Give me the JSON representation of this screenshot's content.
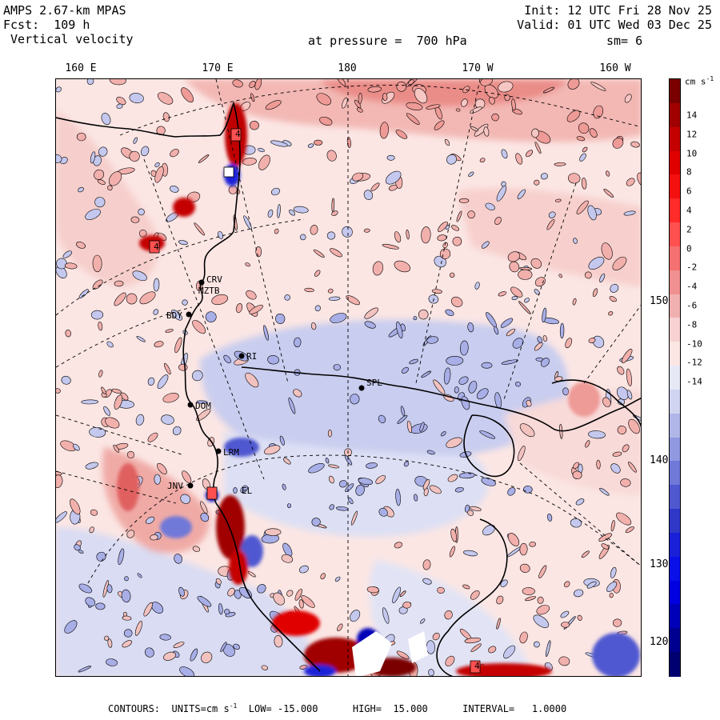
{
  "header": {
    "model": "AMPS 2.67-km MPAS",
    "forecast": "Fcst:  109 h",
    "field": " Vertical velocity",
    "init": "Init: 12 UTC Fri 28 Nov 25",
    "valid": "Valid: 01 UTC Wed 03 Dec 25",
    "level": "at pressure =  700 hPa",
    "smoothing": "sm= 6"
  },
  "lon_labels": [
    "160 E",
    "170 E",
    "180",
    "170 W",
    "160 W"
  ],
  "lat_labels": [
    "150 W",
    "140 W",
    "130 W",
    "120 W"
  ],
  "colorbar": {
    "units_label": "cm s",
    "units_sup": "-1",
    "tick_labels": [
      "14",
      "12",
      "10",
      "8",
      "6",
      "4",
      "2",
      "0",
      "-2",
      "-4",
      "-6",
      "-8",
      "-10",
      "-12",
      "-14"
    ],
    "colors": [
      "#7a0000",
      "#a00000",
      "#c40000",
      "#e00000",
      "#f51010",
      "#ff2a2a",
      "#ff5050",
      "#f57070",
      "#f09090",
      "#f0b0b0",
      "#f8d2d2",
      "#fbe6e4",
      "#e6e8f6",
      "#d0d4f0",
      "#b0b6e8",
      "#9098e0",
      "#7078d8",
      "#5058d0",
      "#3038c8",
      "#1a20d8",
      "#0a10e8",
      "#0000e0",
      "#0000b8",
      "#000090",
      "#000070"
    ]
  },
  "stations": [
    {
      "id": "ROSS",
      "label": "CRV"
    },
    {
      "id": "MZTB",
      "label": "MZTB"
    },
    {
      "id": "BDY",
      "label": "BDY"
    },
    {
      "id": "RI",
      "label": "RI"
    },
    {
      "id": "DOM",
      "label": "DOM"
    },
    {
      "id": "LRM",
      "label": "LRM"
    },
    {
      "id": "JNV",
      "label": "JNV"
    },
    {
      "id": "EL",
      "label": "EL"
    },
    {
      "id": "SPL",
      "label": "SPL"
    }
  ],
  "markers": {
    "high_label": "4"
  },
  "footer": {
    "contours": "CONTOURS:  UNITS=cm s",
    "units_sup": "-1",
    "rest": "  LOW= -15.000      HIGH=  15.000      INTERVAL=   1.0000"
  }
}
